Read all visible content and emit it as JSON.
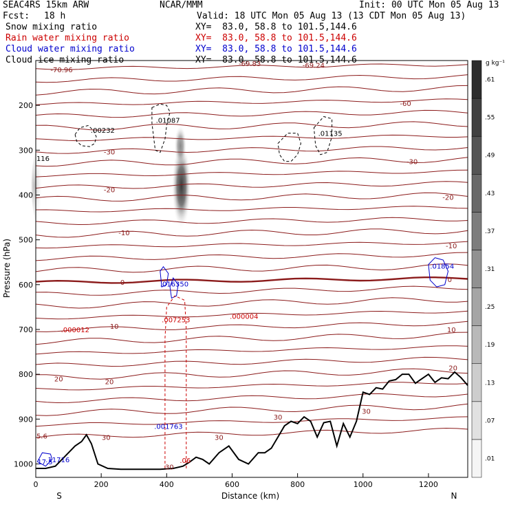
{
  "header": {
    "model": "SEAC4RS 15km ARW",
    "org": "NCAR/MMM",
    "init": "Init: 00 UTC Mon 05 Aug 13",
    "fcst_label": "Fcst:",
    "fcst_value": "18 h",
    "valid": "Valid: 18 UTC Mon 05 Aug 13 (13 CDT Mon 05 Aug 13)"
  },
  "fields": [
    {
      "name": "Snow mixing ratio",
      "xy": "XY=  83.0, 58.8 to 101.5,144.6",
      "color": "#000000"
    },
    {
      "name": "Rain water mixing ratio",
      "xy": "XY=  83.0, 58.8 to 101.5,144.6",
      "color": "#cc0000"
    },
    {
      "name": "Cloud water mixing ratio",
      "xy": "XY=  83.0, 58.8 to 101.5,144.6",
      "color": "#0000cc"
    },
    {
      "name": "Cloud ice mixing ratio",
      "xy": "XY=  83.0, 58.8 to 101.5,144.6",
      "color": "#000000"
    }
  ],
  "chart_data": {
    "type": "cross-section contour",
    "xlabel": "Distance (km)",
    "ylabel": "Pressure (hPa)",
    "xlim": [
      0,
      1320
    ],
    "ylim": [
      1030,
      100
    ],
    "x_ticks": [
      0,
      200,
      400,
      600,
      800,
      1000,
      1200
    ],
    "y_ticks": [
      200,
      300,
      400,
      500,
      600,
      700,
      800,
      900,
      1000
    ],
    "x_end_labels": {
      "left": "S",
      "right": "N"
    },
    "colorbar": {
      "unit": "g kg⁻¹",
      "levels": [
        0.01,
        0.07,
        0.13,
        0.19,
        0.25,
        0.31,
        0.37,
        0.43,
        0.49,
        0.55,
        0.61
      ],
      "level_labels": [
        ".01",
        ".07",
        ".13",
        ".19",
        ".25",
        ".31",
        ".37",
        ".43",
        ".49",
        ".55",
        ".61"
      ]
    },
    "temperature_isotherms": [
      {
        "label": "-60",
        "x_km": 1130,
        "p": 195
      },
      {
        "label": "-30",
        "x_km": 225,
        "p": 303
      },
      {
        "label": "-30",
        "x_km": 1150,
        "p": 325
      },
      {
        "label": "-20",
        "x_km": 225,
        "p": 388
      },
      {
        "label": "-20",
        "x_km": 1260,
        "p": 405
      },
      {
        "label": "-10",
        "x_km": 270,
        "p": 484
      },
      {
        "label": "-10",
        "x_km": 1270,
        "p": 513
      },
      {
        "label": "0",
        "x_km": 265,
        "p": 594
      },
      {
        "label": "0",
        "x_km": 1265,
        "p": 588
      },
      {
        "label": "10",
        "x_km": 240,
        "p": 692
      },
      {
        "label": "10",
        "x_km": 1270,
        "p": 700
      },
      {
        "label": "20",
        "x_km": 70,
        "p": 810
      },
      {
        "label": "20",
        "x_km": 225,
        "p": 816
      },
      {
        "label": "20",
        "x_km": 1275,
        "p": 785
      },
      {
        "label": "30",
        "x_km": 215,
        "p": 940
      },
      {
        "label": "30",
        "x_km": 560,
        "p": 940
      },
      {
        "label": "30",
        "x_km": 740,
        "p": 895
      },
      {
        "label": "30",
        "x_km": 1010,
        "p": 882
      }
    ],
    "maxima_labels": [
      {
        "text": "-70.96",
        "x_km": 45,
        "p": 120,
        "color": "#8b1a1a"
      },
      {
        "text": "-69.83",
        "x_km": 620,
        "p": 106,
        "color": "#8b1a1a"
      },
      {
        "text": "-69.24",
        "x_km": 815,
        "p": 110,
        "color": "#8b1a1a"
      },
      {
        "text": "116",
        "x_km": 2,
        "p": 318,
        "color": "#000000"
      },
      {
        "text": "5.6",
        "x_km": 2,
        "p": 937,
        "color": "#8b1a1a"
      },
      {
        "text": ".00232",
        "x_km": 168,
        "p": 255,
        "color": "#000000"
      },
      {
        "text": ".01087",
        "x_km": 367,
        "p": 233,
        "color": "#000000"
      },
      {
        "text": ".01135",
        "x_km": 863,
        "p": 262,
        "color": "#000000"
      },
      {
        "text": ".016350",
        "x_km": 380,
        "p": 598,
        "color": "#0000cc"
      },
      {
        "text": ".01854",
        "x_km": 1205,
        "p": 558,
        "color": "#0000cc"
      },
      {
        "text": ".007253",
        "x_km": 385,
        "p": 678,
        "color": "#cc0000"
      },
      {
        "text": ".000004",
        "x_km": 593,
        "p": 670,
        "color": "#cc0000"
      },
      {
        "text": ".000012",
        "x_km": 77,
        "p": 700,
        "color": "#cc0000"
      },
      {
        "text": ".001763",
        "x_km": 362,
        "p": 916,
        "color": "#0000cc"
      },
      {
        "text": "17.5",
        "x_km": 5,
        "p": 995,
        "color": "#0000cc"
      },
      {
        "text": ".11716",
        "x_km": 30,
        "p": 990,
        "color": "#0000cc"
      },
      {
        "text": ".06",
        "x_km": 440,
        "p": 992,
        "color": "#cc0000"
      },
      {
        "text": "30",
        "x_km": 395,
        "p": 1006,
        "color": "#8b1a1a"
      }
    ],
    "terrain_pressure": {
      "x_km": [
        0,
        30,
        60,
        80,
        100,
        120,
        140,
        155,
        170,
        190,
        220,
        260,
        300,
        340,
        380,
        420,
        450,
        470,
        490,
        510,
        530,
        560,
        590,
        620,
        650,
        680,
        700,
        720,
        740,
        760,
        780,
        800,
        820,
        840,
        860,
        880,
        900,
        920,
        940,
        960,
        980,
        1000,
        1020,
        1040,
        1060,
        1080,
        1100,
        1120,
        1140,
        1160,
        1180,
        1200,
        1220,
        1240,
        1260,
        1280,
        1300,
        1320
      ],
      "p_hPa": [
        1010,
        1010,
        1005,
        990,
        975,
        960,
        950,
        935,
        955,
        1000,
        1010,
        1012,
        1012,
        1012,
        1012,
        1010,
        1005,
        996,
        985,
        990,
        1000,
        975,
        960,
        990,
        1000,
        975,
        975,
        965,
        940,
        915,
        905,
        910,
        895,
        905,
        940,
        908,
        905,
        960,
        910,
        940,
        905,
        840,
        845,
        830,
        833,
        815,
        812,
        800,
        800,
        820,
        810,
        800,
        818,
        808,
        810,
        795,
        808,
        825
      ]
    }
  }
}
